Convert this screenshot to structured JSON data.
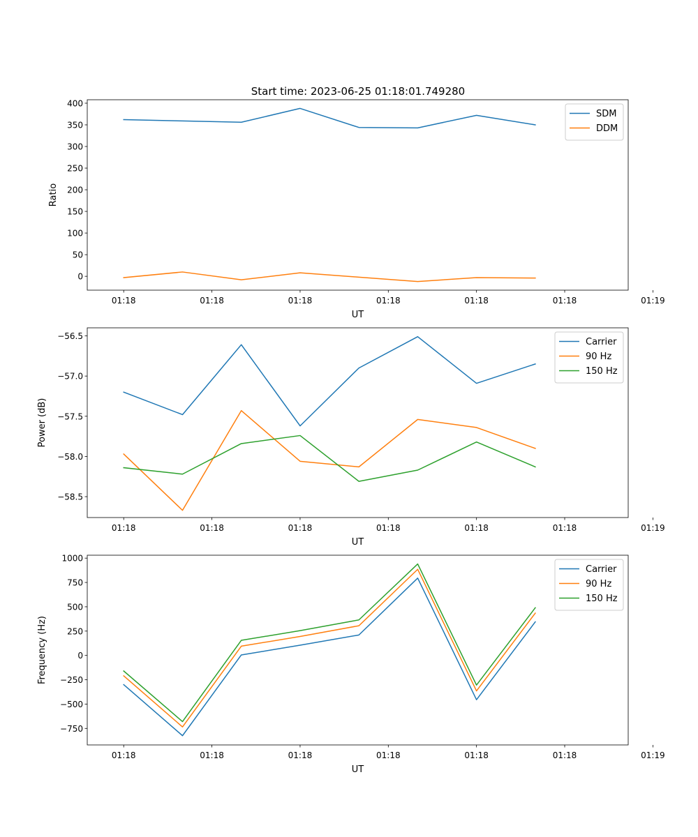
{
  "figure": {
    "title": "Start time: 2023-06-25 01:18:01.749280"
  },
  "chart_data": [
    {
      "type": "line",
      "title": "Start time: 2023-06-25 01:18:01.749280",
      "xlabel": "UT",
      "ylabel": "Ratio",
      "x_ticks": [
        "01:18",
        "01:18",
        "01:18",
        "01:18",
        "01:18",
        "01:18",
        "01:19"
      ],
      "x": [
        1,
        2,
        3,
        4,
        5,
        6,
        7,
        8
      ],
      "xlim": [
        0.38,
        9.58
      ],
      "ylim": [
        -32,
        408
      ],
      "y_ticks": [
        0,
        50,
        100,
        150,
        200,
        250,
        300,
        350,
        400
      ],
      "legend_position": "top-right",
      "grid": false,
      "series": [
        {
          "name": "SDM",
          "color": "#1f77b4",
          "values": [
            362,
            359,
            356,
            388,
            344,
            343,
            372,
            350
          ]
        },
        {
          "name": "DDM",
          "color": "#ff7f0e",
          "values": [
            -3,
            10,
            -8,
            8,
            -2,
            -12,
            -3,
            -4
          ]
        }
      ]
    },
    {
      "type": "line",
      "xlabel": "UT",
      "ylabel": "Power (dB)",
      "x_ticks": [
        "01:18",
        "01:18",
        "01:18",
        "01:18",
        "01:18",
        "01:18",
        "01:19"
      ],
      "x": [
        1,
        2,
        3,
        4,
        5,
        6,
        7,
        8
      ],
      "xlim": [
        0.38,
        9.58
      ],
      "ylim": [
        -58.76,
        -56.4
      ],
      "y_ticks": [
        -58.5,
        -58.0,
        -57.5,
        -57.0,
        -56.5
      ],
      "legend_position": "top-right",
      "grid": false,
      "series": [
        {
          "name": "Carrier",
          "color": "#1f77b4",
          "values": [
            -57.2,
            -57.48,
            -56.61,
            -57.62,
            -56.9,
            -56.51,
            -57.09,
            -56.85
          ]
        },
        {
          "name": "90 Hz",
          "color": "#ff7f0e",
          "values": [
            -57.97,
            -58.67,
            -57.43,
            -58.06,
            -58.13,
            -57.54,
            -57.64,
            -57.9
          ]
        },
        {
          "name": "150 Hz",
          "color": "#2ca02c",
          "values": [
            -58.14,
            -58.22,
            -57.84,
            -57.74,
            -58.31,
            -58.17,
            -57.82,
            -58.13
          ]
        }
      ]
    },
    {
      "type": "line",
      "xlabel": "UT",
      "ylabel": "Frequency (Hz)",
      "x_ticks": [
        "01:18",
        "01:18",
        "01:18",
        "01:18",
        "01:18",
        "01:18",
        "01:19"
      ],
      "x": [
        1,
        2,
        3,
        4,
        5,
        6,
        7,
        8
      ],
      "xlim": [
        0.38,
        9.58
      ],
      "ylim": [
        -920,
        1030
      ],
      "y_ticks": [
        -750,
        -500,
        -250,
        0,
        250,
        500,
        750,
        1000
      ],
      "legend_position": "top-right",
      "grid": false,
      "series": [
        {
          "name": "Carrier",
          "color": "#1f77b4",
          "values": [
            -300,
            -825,
            5,
            105,
            210,
            795,
            -455,
            345
          ]
        },
        {
          "name": "90 Hz",
          "color": "#ff7f0e",
          "values": [
            -210,
            -735,
            95,
            195,
            305,
            885,
            -365,
            435
          ]
        },
        {
          "name": "150 Hz",
          "color": "#2ca02c",
          "values": [
            -160,
            -680,
            155,
            255,
            365,
            940,
            -305,
            490
          ]
        }
      ]
    }
  ]
}
